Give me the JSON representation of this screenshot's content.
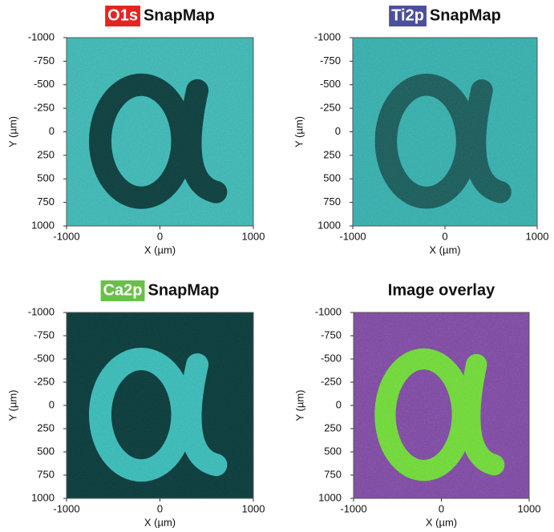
{
  "chart_data": [
    {
      "type": "image",
      "title_tag": "O1s",
      "title_tag_color": "#e52421",
      "title": "SnapMap",
      "xlabel": "X (µm)",
      "ylabel": "Y (µm)",
      "xlim": [
        -1000,
        1000
      ],
      "ylim": [
        1000,
        -1000
      ],
      "xticks": [
        -1000,
        0,
        1000
      ],
      "yticks": [
        -1000,
        -750,
        -500,
        -250,
        0,
        250,
        500,
        750,
        1000
      ],
      "background_color": "#40b3b0",
      "glyph_color": "#123f3e"
    },
    {
      "type": "image",
      "title_tag": "Ti2p",
      "title_tag_color": "#4b4f9e",
      "title": "SnapMap",
      "xlabel": "X (µm)",
      "ylabel": "Y (µm)",
      "xlim": [
        -1000,
        1000
      ],
      "ylim": [
        1000,
        -1000
      ],
      "xticks": [
        -1000,
        0,
        1000
      ],
      "yticks": [
        -1000,
        -750,
        -500,
        -250,
        0,
        250,
        500,
        750,
        1000
      ],
      "background_color": "#39aaa8",
      "glyph_color": "#1f5b59"
    },
    {
      "type": "image",
      "title_tag": "Ca2p",
      "title_tag_color": "#6abf4b",
      "title": "SnapMap",
      "xlabel": "X (µm)",
      "ylabel": "Y (µm)",
      "xlim": [
        -1000,
        1000
      ],
      "ylim": [
        1000,
        -1000
      ],
      "xticks": [
        -1000,
        0,
        1000
      ],
      "yticks": [
        -1000,
        -750,
        -500,
        -250,
        0,
        250,
        500,
        750,
        1000
      ],
      "background_color": "#103c3c",
      "glyph_color": "#3cb6b3"
    },
    {
      "type": "image",
      "title": "Image overlay",
      "xlabel": "X (µm)",
      "ylabel": "Y (µm)",
      "xlim": [
        -1000,
        1000
      ],
      "ylim": [
        1000,
        -1000
      ],
      "xticks": [
        -1000,
        0,
        1000
      ],
      "yticks": [
        -1000,
        -750,
        -500,
        -250,
        0,
        250,
        500,
        750,
        1000
      ],
      "background_color": "#7a4b9e",
      "glyph_color": "#6cd63a"
    }
  ]
}
